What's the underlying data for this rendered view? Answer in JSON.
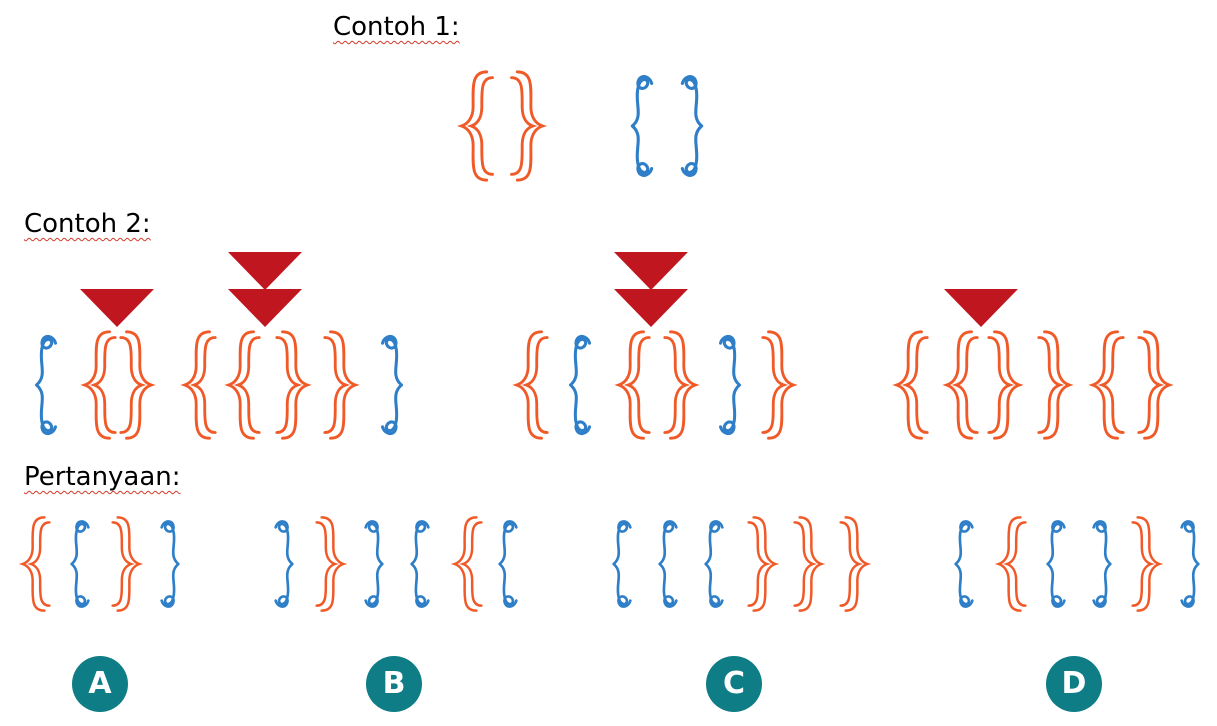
{
  "colors": {
    "orange": "#f05a28",
    "blue": "#2f7fc8",
    "marker": "#c0161f",
    "option_bg": "#0e7d86"
  },
  "headings": {
    "example1": "Contoh 1:",
    "example2": "Contoh 2:",
    "question": "Pertanyaan:"
  },
  "example1": {
    "brackets": [
      [
        "orange",
        "open"
      ],
      [
        "orange",
        "close"
      ],
      [
        "blue",
        "open"
      ],
      [
        "blue",
        "close"
      ]
    ]
  },
  "example2": {
    "groups": [
      {
        "brackets": [
          [
            "blue",
            "open"
          ],
          [
            "orange",
            "open"
          ],
          [
            "orange",
            "close"
          ],
          [
            "orange",
            "open"
          ],
          [
            "orange",
            "open"
          ],
          [
            "orange",
            "close"
          ],
          [
            "orange",
            "close"
          ],
          [
            "blue",
            "close"
          ]
        ],
        "markers": [
          1,
          2
        ]
      },
      {
        "brackets": [
          [
            "orange",
            "open"
          ],
          [
            "blue",
            "open"
          ],
          [
            "orange",
            "open"
          ],
          [
            "orange",
            "close"
          ],
          [
            "blue",
            "close"
          ],
          [
            "orange",
            "close"
          ]
        ],
        "markers": [
          2
        ]
      },
      {
        "brackets": [
          [
            "orange",
            "open"
          ],
          [
            "orange",
            "open"
          ],
          [
            "orange",
            "close"
          ],
          [
            "orange",
            "close"
          ],
          [
            "orange",
            "open"
          ],
          [
            "orange",
            "close"
          ]
        ],
        "markers": [
          1
        ]
      }
    ]
  },
  "question": {
    "options": [
      {
        "label": "A",
        "brackets": [
          [
            "orange",
            "open"
          ],
          [
            "blue",
            "open"
          ],
          [
            "orange",
            "close"
          ],
          [
            "blue",
            "close"
          ]
        ]
      },
      {
        "label": "B",
        "brackets": [
          [
            "blue",
            "close"
          ],
          [
            "orange",
            "close"
          ],
          [
            "blue",
            "close"
          ],
          [
            "blue",
            "open"
          ],
          [
            "orange",
            "open"
          ],
          [
            "blue",
            "open"
          ]
        ]
      },
      {
        "label": "C",
        "brackets": [
          [
            "blue",
            "open"
          ],
          [
            "blue",
            "open"
          ],
          [
            "blue",
            "open"
          ],
          [
            "orange",
            "close"
          ],
          [
            "orange",
            "close"
          ],
          [
            "orange",
            "close"
          ]
        ]
      },
      {
        "label": "D",
        "brackets": [
          [
            "blue",
            "open"
          ],
          [
            "orange",
            "open"
          ],
          [
            "blue",
            "open"
          ],
          [
            "blue",
            "close"
          ],
          [
            "orange",
            "close"
          ],
          [
            "blue",
            "close"
          ]
        ]
      }
    ]
  }
}
